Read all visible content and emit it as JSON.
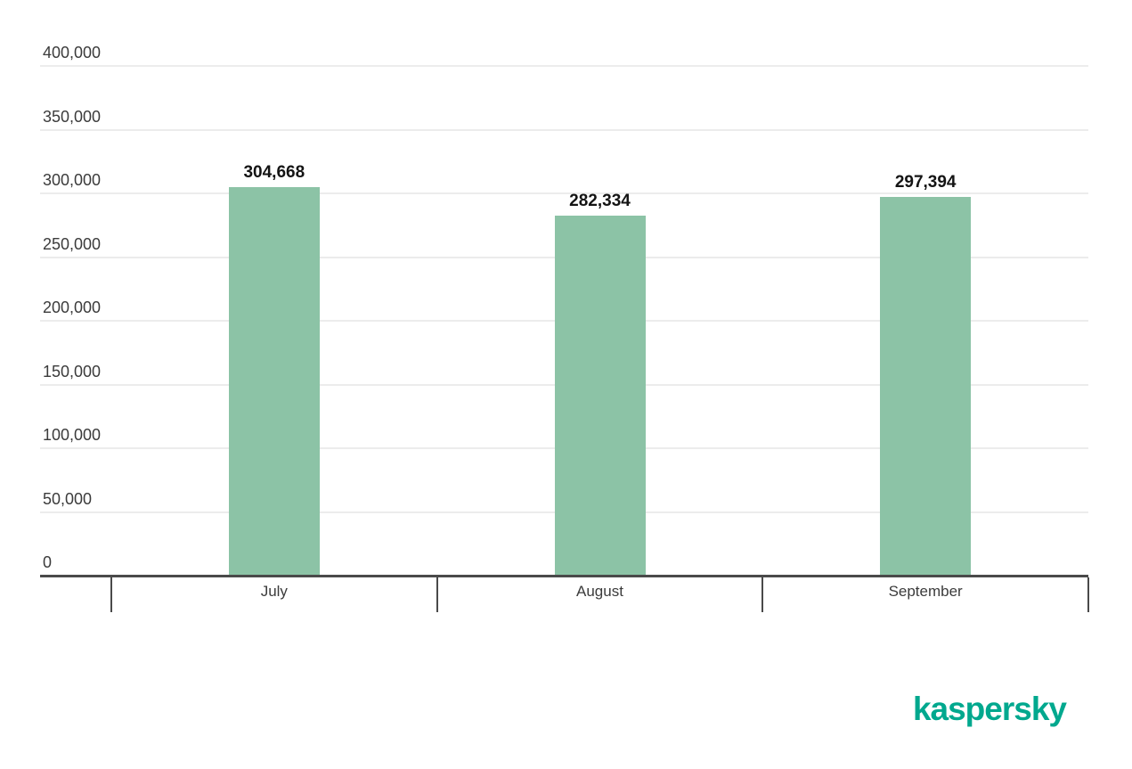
{
  "chart_data": {
    "type": "bar",
    "title": "",
    "xlabel": "",
    "ylabel": "",
    "categories": [
      "July",
      "August",
      "September"
    ],
    "values": [
      304668,
      282334,
      297394
    ],
    "value_labels": [
      "304,668",
      "282,334",
      "297,394"
    ],
    "ylim": [
      0,
      400000
    ],
    "yticks": [
      0,
      50000,
      100000,
      150000,
      200000,
      250000,
      300000,
      350000,
      400000
    ],
    "ytick_labels": [
      "0",
      "50,000",
      "100,000",
      "150,000",
      "200,000",
      "250,000",
      "300,000",
      "350,000",
      "400,000"
    ],
    "grid": true,
    "legend_position": "none",
    "bar_color": "#8CC3A6"
  },
  "branding": {
    "logo_text": "kaspersky",
    "logo_color": "#00A88E"
  },
  "colors": {
    "background": "#FFFFFF",
    "gridline": "#ECECEC",
    "axis_line": "#4A4A4A",
    "tick_mark": "#4A4A4A",
    "ytick_label": "#3B3B3B",
    "xtick_label": "#3B3B3B",
    "value_label": "#141414",
    "separator": "#E7E7E7"
  }
}
